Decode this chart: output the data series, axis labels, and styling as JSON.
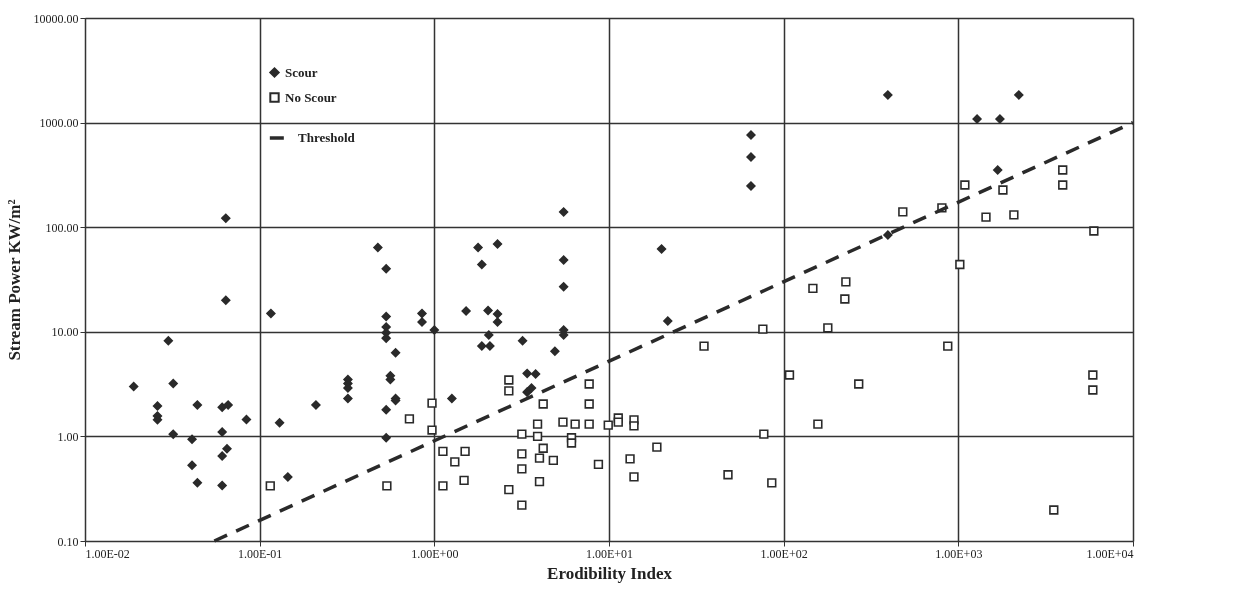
{
  "chart_data": {
    "type": "scatter",
    "xlabel": "Erodibility Index",
    "ylabel": "Stream Power KW/m²",
    "log": "xy",
    "grid": true,
    "legend": "top left",
    "xlim": [
      0.01,
      10000
    ],
    "ylim": [
      0.1,
      10000
    ],
    "xticks": [
      {
        "value": 0.01,
        "label": "1.00E-02"
      },
      {
        "value": 0.1,
        "label": "1.00E-01"
      },
      {
        "value": 1,
        "label": "1.00E+00"
      },
      {
        "value": 10,
        "label": "1.00E+01"
      },
      {
        "value": 100,
        "label": "1.00E+02"
      },
      {
        "value": 1000,
        "label": "1.00E+03"
      },
      {
        "value": 10000,
        "label": "1.00E+04"
      }
    ],
    "yticks": [
      {
        "value": 0.1,
        "label": "0.10"
      },
      {
        "value": 1,
        "label": "1.00"
      },
      {
        "value": 10,
        "label": "10.00"
      },
      {
        "value": 100,
        "label": "100.00"
      },
      {
        "value": 1000,
        "label": "1000.00"
      },
      {
        "value": 10000,
        "label": "10000.00"
      }
    ],
    "series": [
      {
        "name": "Scour",
        "marker": "diamond",
        "color": "#2a2a2a",
        "x": [
          0.064,
          0.064,
          0.03,
          0.019,
          0.026,
          0.026,
          0.026,
          0.032,
          0.032,
          0.044,
          0.041,
          0.041,
          0.044,
          0.061,
          0.066,
          0.061,
          0.061,
          0.065,
          0.061,
          0.084,
          0.116,
          0.13,
          0.145,
          0.21,
          0.32,
          0.32,
          0.32,
          0.32,
          0.475,
          0.53,
          0.53,
          0.53,
          0.53,
          0.53,
          0.6,
          0.56,
          0.56,
          0.6,
          0.6,
          0.53,
          0.53,
          0.85,
          0.85,
          1.0,
          5.5,
          1.78,
          2.3,
          1.87,
          5.5,
          5.5,
          1.52,
          2.03,
          2.3,
          2.3,
          2.05,
          1.87,
          2.08,
          5.5,
          5.5,
          3.2,
          4.9,
          3.4,
          3.8,
          3.4,
          3.6,
          1.26,
          20,
          21.7,
          65,
          65,
          65,
          395,
          2220,
          1280,
          1730,
          1680,
          395
        ],
        "values": [
          122,
          20,
          8.2,
          3.0,
          1.95,
          1.57,
          1.44,
          3.2,
          1.05,
          2.0,
          0.94,
          0.53,
          0.36,
          1.9,
          2.0,
          1.1,
          0.65,
          0.76,
          0.34,
          1.45,
          15,
          1.35,
          0.41,
          2.0,
          3.5,
          3.2,
          2.9,
          2.3,
          64,
          40,
          14,
          11.1,
          9.8,
          8.7,
          6.3,
          3.8,
          3.5,
          2.3,
          2.2,
          1.8,
          0.97,
          15,
          12.4,
          10.4,
          140,
          64,
          69,
          44,
          48.5,
          27,
          15.8,
          16,
          14.8,
          12.4,
          9.3,
          7.3,
          7.3,
          10.4,
          9.3,
          8.2,
          6.5,
          4.0,
          3.95,
          2.65,
          2.9,
          2.3,
          62,
          12.7,
          760,
          469,
          248,
          1840,
          1840,
          1080,
          1080,
          352,
          84
        ]
      },
      {
        "name": "No Scour",
        "marker": "square",
        "color": "#2a2a2a",
        "x": [
          0.115,
          0.535,
          0.72,
          0.97,
          0.97,
          1.12,
          1.5,
          1.31,
          1.12,
          1.48,
          2.67,
          2.67,
          4.2,
          3.9,
          3.17,
          3.9,
          3.17,
          3.17,
          4.2,
          4.0,
          4.8,
          4.0,
          2.67,
          3.17,
          5.45,
          6.4,
          6.1,
          6.1,
          7.7,
          7.7,
          7.7,
          8.7,
          9.9,
          11.3,
          11.3,
          13.9,
          13.9,
          13.2,
          13.9,
          18.8,
          35,
          76,
          77,
          48,
          85.5,
          108,
          147,
          227,
          224,
          179,
          269,
          157,
          481,
          805,
          1090,
          1020,
          870,
          1440,
          1800,
          2080,
          3960,
          3960,
          5970,
          5890,
          5890,
          3520
        ],
        "values": [
          0.336,
          0.336,
          1.47,
          2.08,
          1.15,
          0.72,
          0.72,
          0.57,
          0.336,
          0.38,
          3.46,
          2.72,
          2.04,
          1.31,
          1.05,
          1.0,
          0.68,
          0.49,
          0.77,
          0.62,
          0.59,
          0.37,
          0.31,
          0.22,
          1.37,
          1.31,
          0.97,
          0.865,
          3.17,
          2.04,
          1.31,
          0.54,
          1.28,
          1.5,
          1.37,
          1.44,
          1.26,
          0.61,
          0.41,
          0.79,
          7.3,
          10.6,
          1.05,
          0.43,
          0.36,
          3.86,
          26,
          30,
          20.6,
          10.9,
          3.17,
          1.31,
          140,
          153,
          253,
          44,
          7.3,
          125,
          227,
          131,
          352,
          253,
          92,
          3.86,
          2.78,
          0.198
        ]
      },
      {
        "name": "Threshold",
        "type": "line",
        "line_style": "dashed",
        "color": "#2a2a2a",
        "x": [
          0.055,
          10000
        ],
        "values": [
          0.1,
          1000
        ]
      }
    ]
  }
}
